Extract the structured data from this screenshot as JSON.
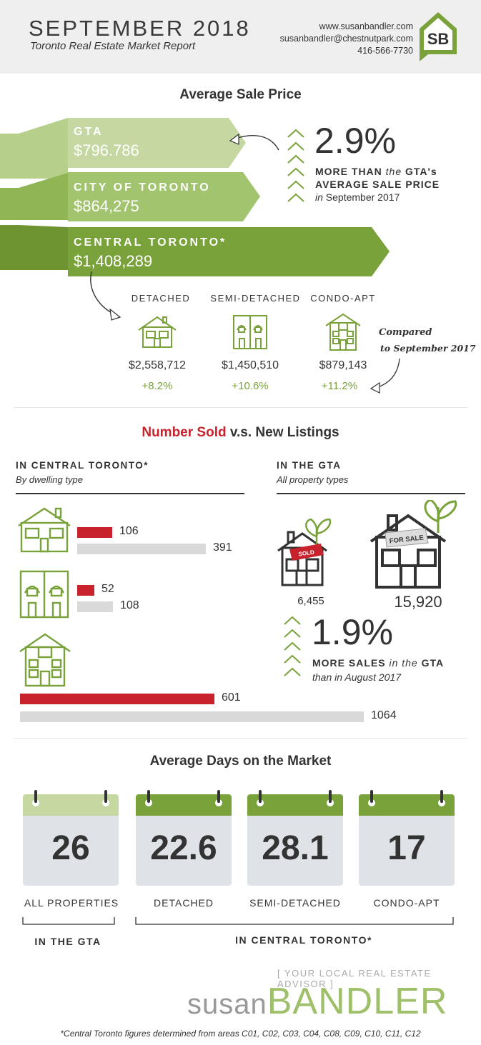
{
  "header": {
    "title": "SEPTEMBER 2018",
    "subtitle": "Toronto Real Estate Market Report",
    "website": "www.susanbandler.com",
    "email": "susanbandler@chestnutpark.com",
    "phone": "416-566-7730",
    "logo_text": "SB"
  },
  "avg_price": {
    "title": "Average Sale Price",
    "regions": [
      {
        "label": "GTA",
        "value": "$796.786"
      },
      {
        "label": "CITY OF TORONTO",
        "value": "$864,275"
      },
      {
        "label": "CENTRAL TORONTO*",
        "value": "$1,408,289"
      }
    ],
    "stat": {
      "percent": "2.9%",
      "line1_bold": "MORE THAN",
      "line1_italic": "the",
      "line1_end": "GTA's",
      "line2": "AVERAGE SALE PRICE",
      "line3_italic": "in",
      "line3_end": "September 2017"
    },
    "types": [
      {
        "label": "DETACHED",
        "price": "$2,558,712",
        "change": "+8.2%"
      },
      {
        "label": "SEMI-DETACHED",
        "price": "$1,450,510",
        "change": "+10.6%"
      },
      {
        "label": "CONDO-APT",
        "price": "$879,143",
        "change": "+11.2%"
      }
    ],
    "note_line1": "Compared",
    "note_line2": "to September 2017"
  },
  "sold_listings": {
    "title_red": "Number Sold",
    "title_rest": "v.s. New Listings",
    "central_heading": "IN CENTRAL TORONTO*",
    "central_sub": "By dwelling type",
    "gta_heading": "IN THE GTA",
    "gta_sub": "All property types",
    "sold_sign": "SOLD",
    "for_sale_sign": "FOR SALE",
    "gta_sold": "6,455",
    "gta_listings": "15,920",
    "stat": {
      "percent": "1.9%",
      "line1_bold": "MORE SALES",
      "line1_italic": "in the",
      "line1_end": "GTA",
      "line2": "than in August 2017"
    }
  },
  "chart_data": {
    "type": "bar",
    "categories": [
      "Detached",
      "Semi-detached",
      "Condo-apt"
    ],
    "series": [
      {
        "name": "Number Sold",
        "values": [
          106,
          52,
          601
        ]
      },
      {
        "name": "New Listings",
        "values": [
          391,
          108,
          1064
        ]
      }
    ],
    "colors": {
      "sold": "#c8232c",
      "listings": "#d9d9d9"
    }
  },
  "days": {
    "title": "Average Days on the Market",
    "items": [
      {
        "value": "26",
        "label": "ALL PROPERTIES",
        "color": "#c5d8a2"
      },
      {
        "value": "22.6",
        "label": "DETACHED",
        "color": "#7aa23a"
      },
      {
        "value": "28.1",
        "label": "SEMI-DETACHED",
        "color": "#7aa23a"
      },
      {
        "value": "17",
        "label": "CONDO-APT",
        "color": "#7aa23a"
      }
    ],
    "group_gta": "IN THE GTA",
    "group_central": "IN CENTRAL TORONTO*"
  },
  "footer": {
    "tagline": "[ YOUR LOCAL REAL ESTATE ADVISOR ]",
    "brand_first": "susan",
    "brand_last": "BANDLER",
    "footnote": "*Central Toronto figures determined from areas C01, C02, C03, C04, C08, C09, C10, C11, C12"
  },
  "colors": {
    "light_green": "#c5d8a2",
    "mid_green": "#9fc06a",
    "dark_green": "#7aa23a",
    "red": "#c8232c",
    "grey": "#d9d9d9"
  },
  "icons": [
    "chevron-up-icon",
    "detached-house-icon",
    "semi-detached-house-icon",
    "condo-building-icon",
    "calendar-icon",
    "tree-icon",
    "logo-house-icon"
  ]
}
